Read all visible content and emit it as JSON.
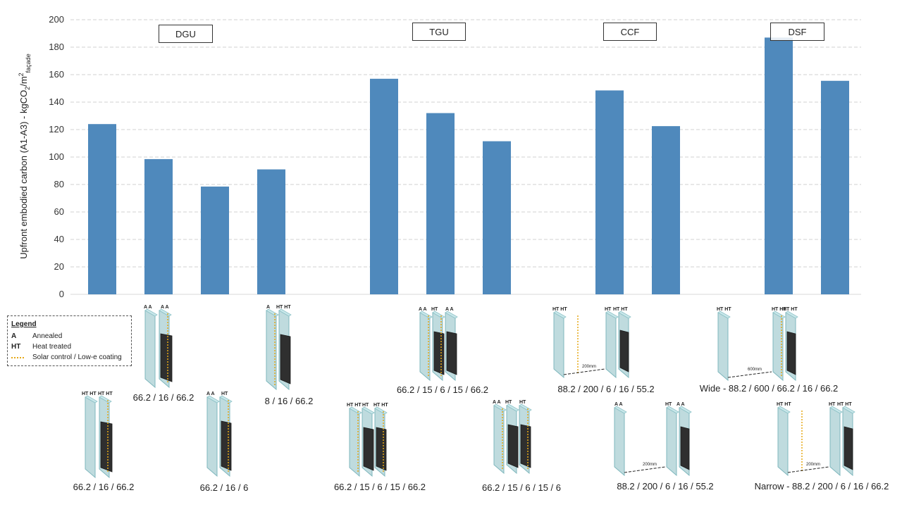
{
  "chart_data": {
    "type": "bar",
    "ylabel": "Upfront embodied carbon (A1-A3) - kgCO2/m2 façade",
    "ylabel_parts": {
      "main": "Upfront embodied carbon (A1-A3) - kgCO",
      "sub1": "2",
      "mid": "/m",
      "sup": "2",
      "sub2": "façade"
    },
    "ylim": [
      0,
      200
    ],
    "yticks": [
      "0",
      "20",
      "40",
      "60",
      "80",
      "100",
      "120",
      "140",
      "160",
      "180",
      "200"
    ],
    "grid": true,
    "bar_color": "#4f89bc",
    "groups": [
      "DGU",
      "TGU",
      "CCF",
      "DSF"
    ],
    "values": [
      124,
      98.5,
      78.5,
      91,
      157,
      132,
      111.5,
      148.5,
      122.5,
      187,
      155.5
    ]
  },
  "legend": {
    "title": "Legend",
    "items": [
      {
        "key": "A",
        "label": "Annealed"
      },
      {
        "key": "HT",
        "label": "Heat treated"
      },
      {
        "key": "",
        "label": "Solar control / Low-e coating"
      }
    ]
  },
  "glazing_labels": [
    "66.2 / 16 / 66.2",
    "66.2 / 16 / 66.2",
    "66.2 / 16 / 6",
    "8 / 16 / 66.2",
    "66.2 / 15 / 6 / 15 / 66.2",
    "66.2 / 15 / 6 / 15 / 66.2",
    "66.2 / 15 / 6 / 15 / 6",
    "88.2 / 200 / 6 / 16 / 55.2",
    "88.2 / 200 / 6 / 16 / 55.2",
    "Wide - 88.2 / 600 / 66.2 / 16 / 66.2",
    "Narrow - 88.2 / 200 / 6 / 16 / 66.2"
  ],
  "pane_tags": {
    "a_a": "A A",
    "ht_ht": "HT HT",
    "ht": "HT",
    "a": "A",
    "gap_200": "200mm",
    "gap_600": "600mm"
  }
}
